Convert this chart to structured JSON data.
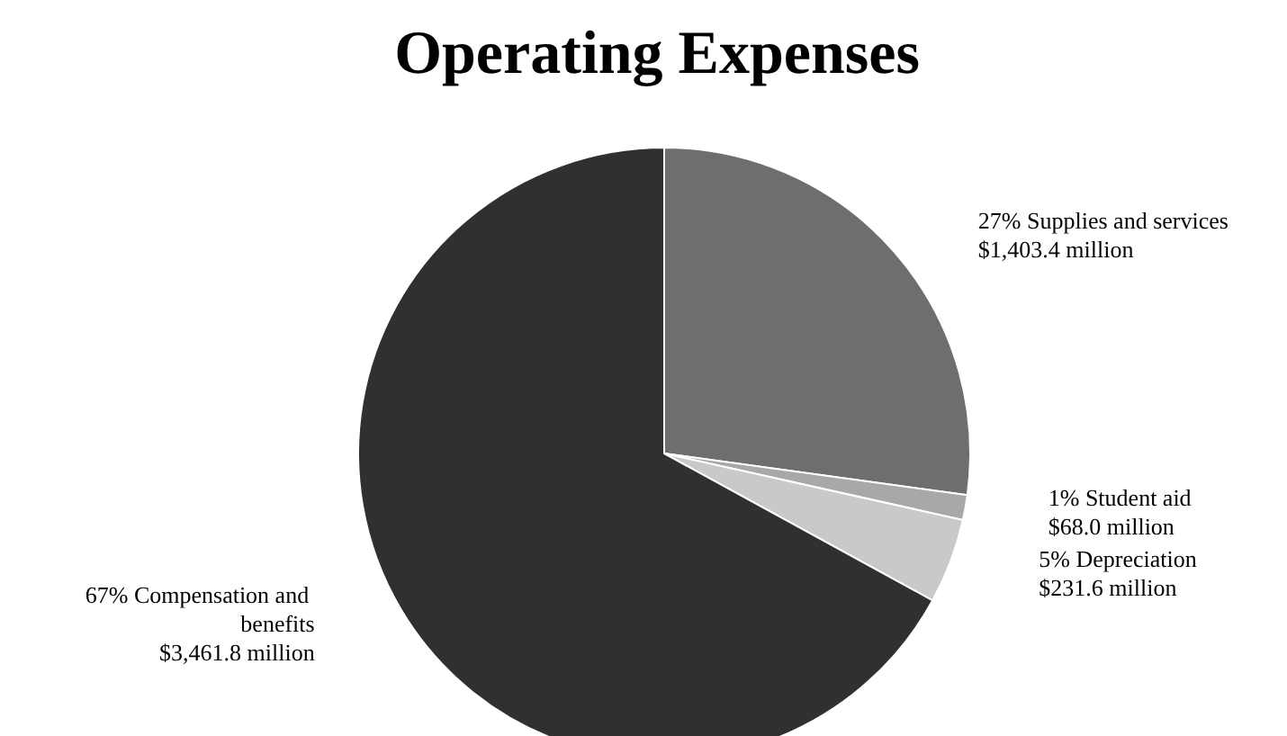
{
  "chart_data": {
    "type": "pie",
    "title": "Operating Expenses",
    "categories": [
      "27% Supplies and services",
      "1% Student aid",
      "5% Depreciation",
      "67% Compensation and benefits"
    ],
    "values": [
      1403.4,
      68.0,
      231.6,
      3461.8
    ],
    "value_labels": [
      "$1,403.4 million",
      "$68.0 million",
      "$231.6 million",
      "$3,461.8 million"
    ],
    "colors": [
      "#6e6e6e",
      "#a8a8a8",
      "#c9c9c9",
      "#303030"
    ],
    "legend": false
  }
}
